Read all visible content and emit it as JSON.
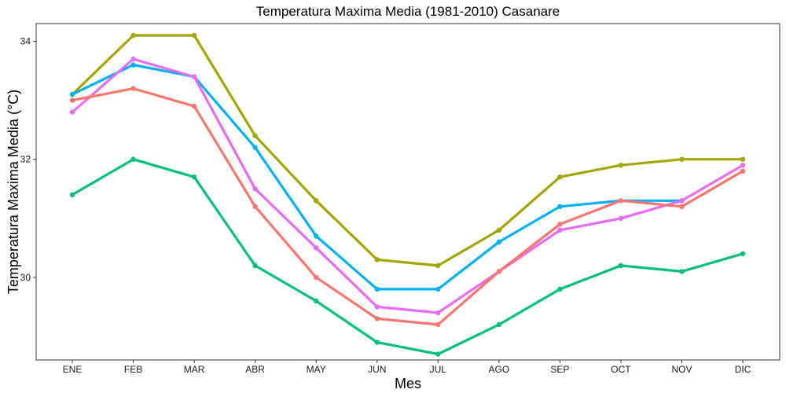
{
  "chart_data": {
    "type": "line",
    "title": "Temperatura Maxima Media (1981-2010)  Casanare",
    "xlabel": "Mes",
    "ylabel": "Temperatura Maxima Media  (°C)",
    "categories": [
      "ENE",
      "FEB",
      "MAR",
      "ABR",
      "MAY",
      "JUN",
      "JUL",
      "AGO",
      "SEP",
      "OCT",
      "NOV",
      "DIC"
    ],
    "ylim": [
      28.6,
      34.3
    ],
    "yticks": [
      30,
      32,
      34
    ],
    "grid": false,
    "legend": "none",
    "series": [
      {
        "color": "#a3a500",
        "values": [
          33.1,
          34.1,
          34.1,
          32.4,
          31.3,
          30.3,
          30.2,
          30.8,
          31.7,
          31.9,
          32.0,
          32.0
        ]
      },
      {
        "color": "#00b0f6",
        "values": [
          33.1,
          33.6,
          33.4,
          32.2,
          30.7,
          29.8,
          29.8,
          30.6,
          31.2,
          31.3,
          31.3,
          null
        ]
      },
      {
        "color": "#e76bf3",
        "values": [
          32.8,
          33.7,
          33.4,
          31.5,
          30.5,
          29.5,
          29.4,
          30.1,
          30.8,
          31.0,
          31.3,
          31.9
        ]
      },
      {
        "color": "#f8766d",
        "values": [
          33.0,
          33.2,
          32.9,
          31.2,
          30.0,
          29.3,
          29.2,
          30.1,
          30.9,
          31.3,
          31.2,
          31.8
        ]
      },
      {
        "color": "#00bf7d",
        "values": [
          31.4,
          32.0,
          31.7,
          30.2,
          29.6,
          28.9,
          28.7,
          29.2,
          29.8,
          30.2,
          30.1,
          30.4
        ]
      }
    ]
  }
}
